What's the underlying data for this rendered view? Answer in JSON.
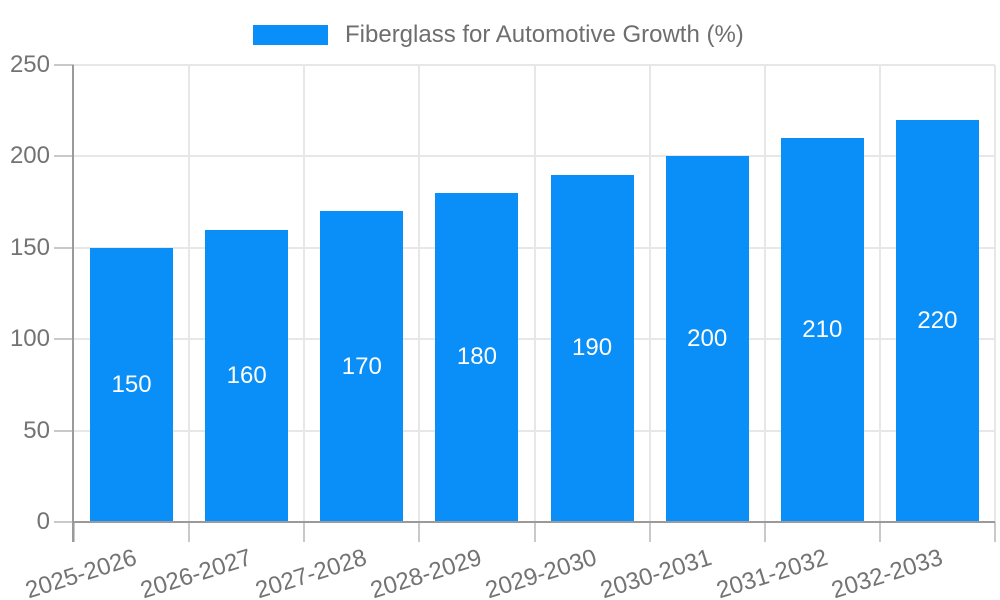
{
  "chart_data": {
    "type": "bar",
    "title": "Fiberglass for Automotive Growth (%)",
    "legend": {
      "label": "Fiberglass for Automotive Growth (%)",
      "position": "top-center"
    },
    "categories": [
      "2025-2026",
      "2026-2027",
      "2027-2028",
      "2028-2029",
      "2029-2030",
      "2030-2031",
      "2031-2032",
      "2032-2033"
    ],
    "values": [
      150,
      160,
      170,
      180,
      190,
      200,
      210,
      220
    ],
    "value_labels_shown": true,
    "value_label_position": "center-of-bar",
    "xlabel": "",
    "ylabel": "",
    "ylim": [
      0,
      250
    ],
    "yticks": [
      0,
      50,
      100,
      150,
      200,
      250
    ],
    "grid": "both",
    "x_tick_label_rotation_deg": -17.5,
    "colors": {
      "bar": "#0a8ef7",
      "grid": "#e7e7e7",
      "tick_mark": "#c9c9c9",
      "axis_border": "#9a9a9a",
      "tick_label": "#737373",
      "value_label": "#ffffff",
      "legend_text": "#6e6e6e",
      "background": "#ffffff"
    }
  }
}
